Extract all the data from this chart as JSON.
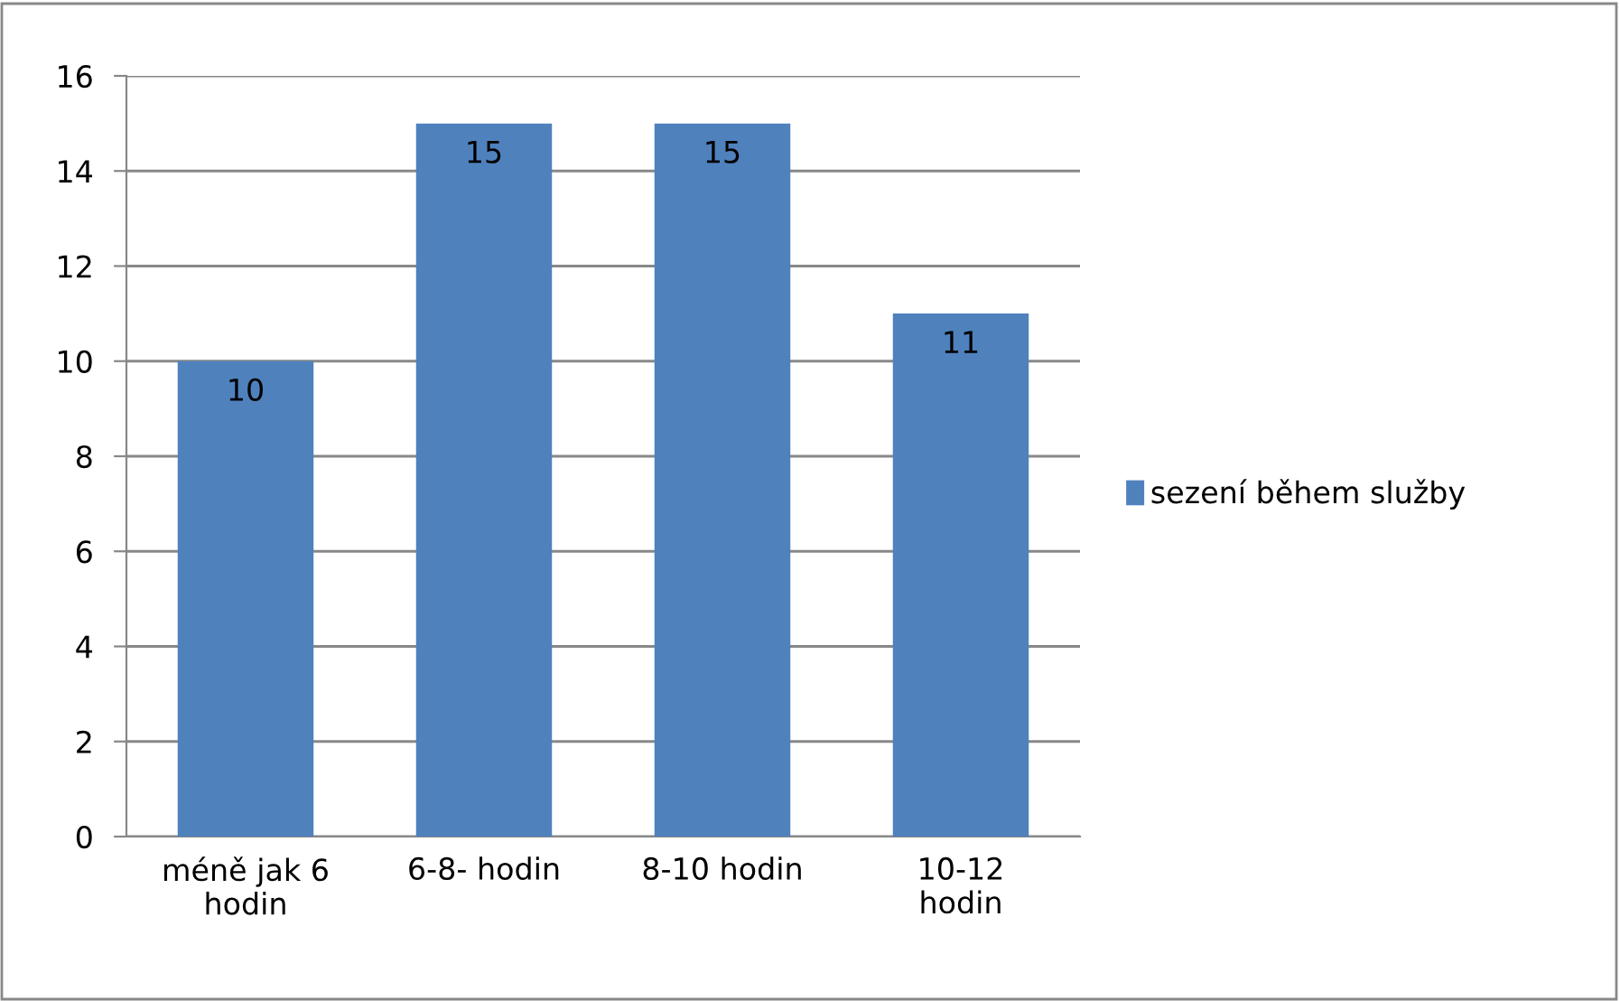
{
  "chart_data": {
    "type": "bar",
    "categories": [
      "méně jak 6\nhodin",
      "6-8- hodin",
      "8-10 hodin",
      "10-12\nhodin"
    ],
    "series": [
      {
        "name": "sezení během služby",
        "color": "#4f81bd",
        "values": [
          10,
          15,
          15,
          11
        ]
      }
    ],
    "ylim": [
      0,
      16
    ],
    "yticks": [
      0,
      2,
      4,
      6,
      8,
      10,
      12,
      14,
      16
    ],
    "grid": "y",
    "legend": "right",
    "data_labels": true
  }
}
